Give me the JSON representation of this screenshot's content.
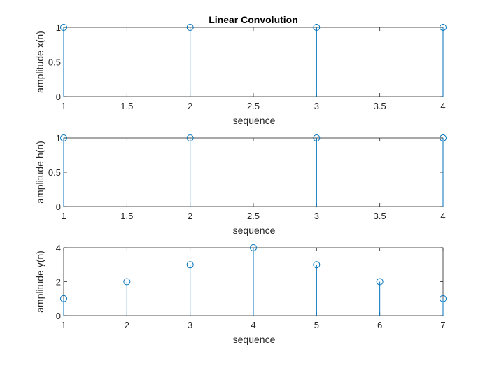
{
  "figure_title": "Linear Convolution",
  "colors": {
    "stem": "#0072BD",
    "axes": "#262626",
    "background": "#ffffff"
  },
  "chart_data": [
    {
      "type": "stem",
      "title": "Linear Convolution",
      "xlabel": "sequence",
      "ylabel": "amplitude x(n)",
      "x": [
        1,
        2,
        3,
        4
      ],
      "values": [
        1,
        1,
        1,
        1
      ],
      "xlim": [
        1,
        4
      ],
      "ylim": [
        0,
        1
      ],
      "xticks": [
        1,
        1.5,
        2,
        2.5,
        3,
        3.5,
        4
      ],
      "xtick_labels": [
        "1",
        "1.5",
        "2",
        "2.5",
        "3",
        "3.5",
        "4"
      ],
      "yticks": [
        0,
        0.5,
        1
      ],
      "ytick_labels": [
        "0",
        "0.5",
        "1"
      ],
      "grid": false
    },
    {
      "type": "stem",
      "title": "",
      "xlabel": "sequence",
      "ylabel": "amplitude h(n)",
      "x": [
        1,
        2,
        3,
        4
      ],
      "values": [
        1,
        1,
        1,
        1
      ],
      "xlim": [
        1,
        4
      ],
      "ylim": [
        0,
        1
      ],
      "xticks": [
        1,
        1.5,
        2,
        2.5,
        3,
        3.5,
        4
      ],
      "xtick_labels": [
        "1",
        "1.5",
        "2",
        "2.5",
        "3",
        "3.5",
        "4"
      ],
      "yticks": [
        0,
        0.5,
        1
      ],
      "ytick_labels": [
        "0",
        "0.5",
        "1"
      ],
      "grid": false
    },
    {
      "type": "stem",
      "title": "",
      "xlabel": "sequence",
      "ylabel": "amplitude y(n)",
      "x": [
        1,
        2,
        3,
        4,
        5,
        6,
        7
      ],
      "values": [
        1,
        2,
        3,
        4,
        3,
        2,
        1
      ],
      "xlim": [
        1,
        7
      ],
      "ylim": [
        0,
        4
      ],
      "xticks": [
        1,
        2,
        3,
        4,
        5,
        6,
        7
      ],
      "xtick_labels": [
        "1",
        "2",
        "3",
        "4",
        "5",
        "6",
        "7"
      ],
      "yticks": [
        0,
        2,
        4
      ],
      "ytick_labels": [
        "0",
        "2",
        "4"
      ],
      "grid": false
    }
  ]
}
